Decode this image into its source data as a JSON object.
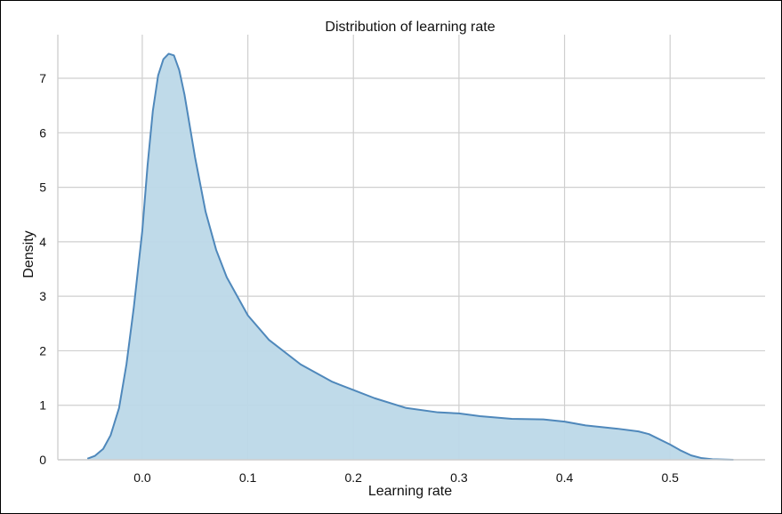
{
  "chart_data": {
    "type": "area",
    "title": "Distribution of learning rate",
    "xlabel": "Learning rate",
    "ylabel": "Density",
    "xlim": [
      -0.08,
      0.59
    ],
    "ylim": [
      0,
      7.8
    ],
    "x_ticks": [
      0.0,
      0.1,
      0.2,
      0.3,
      0.4,
      0.5
    ],
    "x_tick_labels": [
      "0.0",
      "0.1",
      "0.2",
      "0.3",
      "0.4",
      "0.5"
    ],
    "y_ticks": [
      0,
      1,
      2,
      3,
      4,
      5,
      6,
      7
    ],
    "y_tick_labels": [
      "0",
      "1",
      "2",
      "3",
      "4",
      "5",
      "6",
      "7"
    ],
    "grid": true,
    "series": [
      {
        "x": [
          -0.052,
          -0.045,
          -0.037,
          -0.03,
          -0.022,
          -0.015,
          -0.008,
          0.0,
          0.005,
          0.01,
          0.015,
          0.02,
          0.025,
          0.03,
          0.035,
          0.04,
          0.05,
          0.06,
          0.07,
          0.08,
          0.1,
          0.12,
          0.15,
          0.18,
          0.2,
          0.22,
          0.25,
          0.28,
          0.3,
          0.32,
          0.35,
          0.38,
          0.4,
          0.42,
          0.45,
          0.47,
          0.48,
          0.5,
          0.51,
          0.52,
          0.53,
          0.54,
          0.56
        ],
        "y": [
          0.02,
          0.07,
          0.2,
          0.45,
          0.95,
          1.75,
          2.8,
          4.2,
          5.4,
          6.4,
          7.05,
          7.35,
          7.45,
          7.42,
          7.15,
          6.7,
          5.55,
          4.55,
          3.85,
          3.35,
          2.65,
          2.2,
          1.75,
          1.43,
          1.28,
          1.13,
          0.95,
          0.87,
          0.85,
          0.8,
          0.75,
          0.74,
          0.7,
          0.63,
          0.57,
          0.52,
          0.47,
          0.28,
          0.17,
          0.08,
          0.03,
          0.01,
          0.0
        ]
      }
    ],
    "colors": {
      "line": "#4f88bb",
      "fill": "#bcd8e8",
      "grid": "#cfcfcf",
      "axis": "#cfcfcf"
    }
  }
}
